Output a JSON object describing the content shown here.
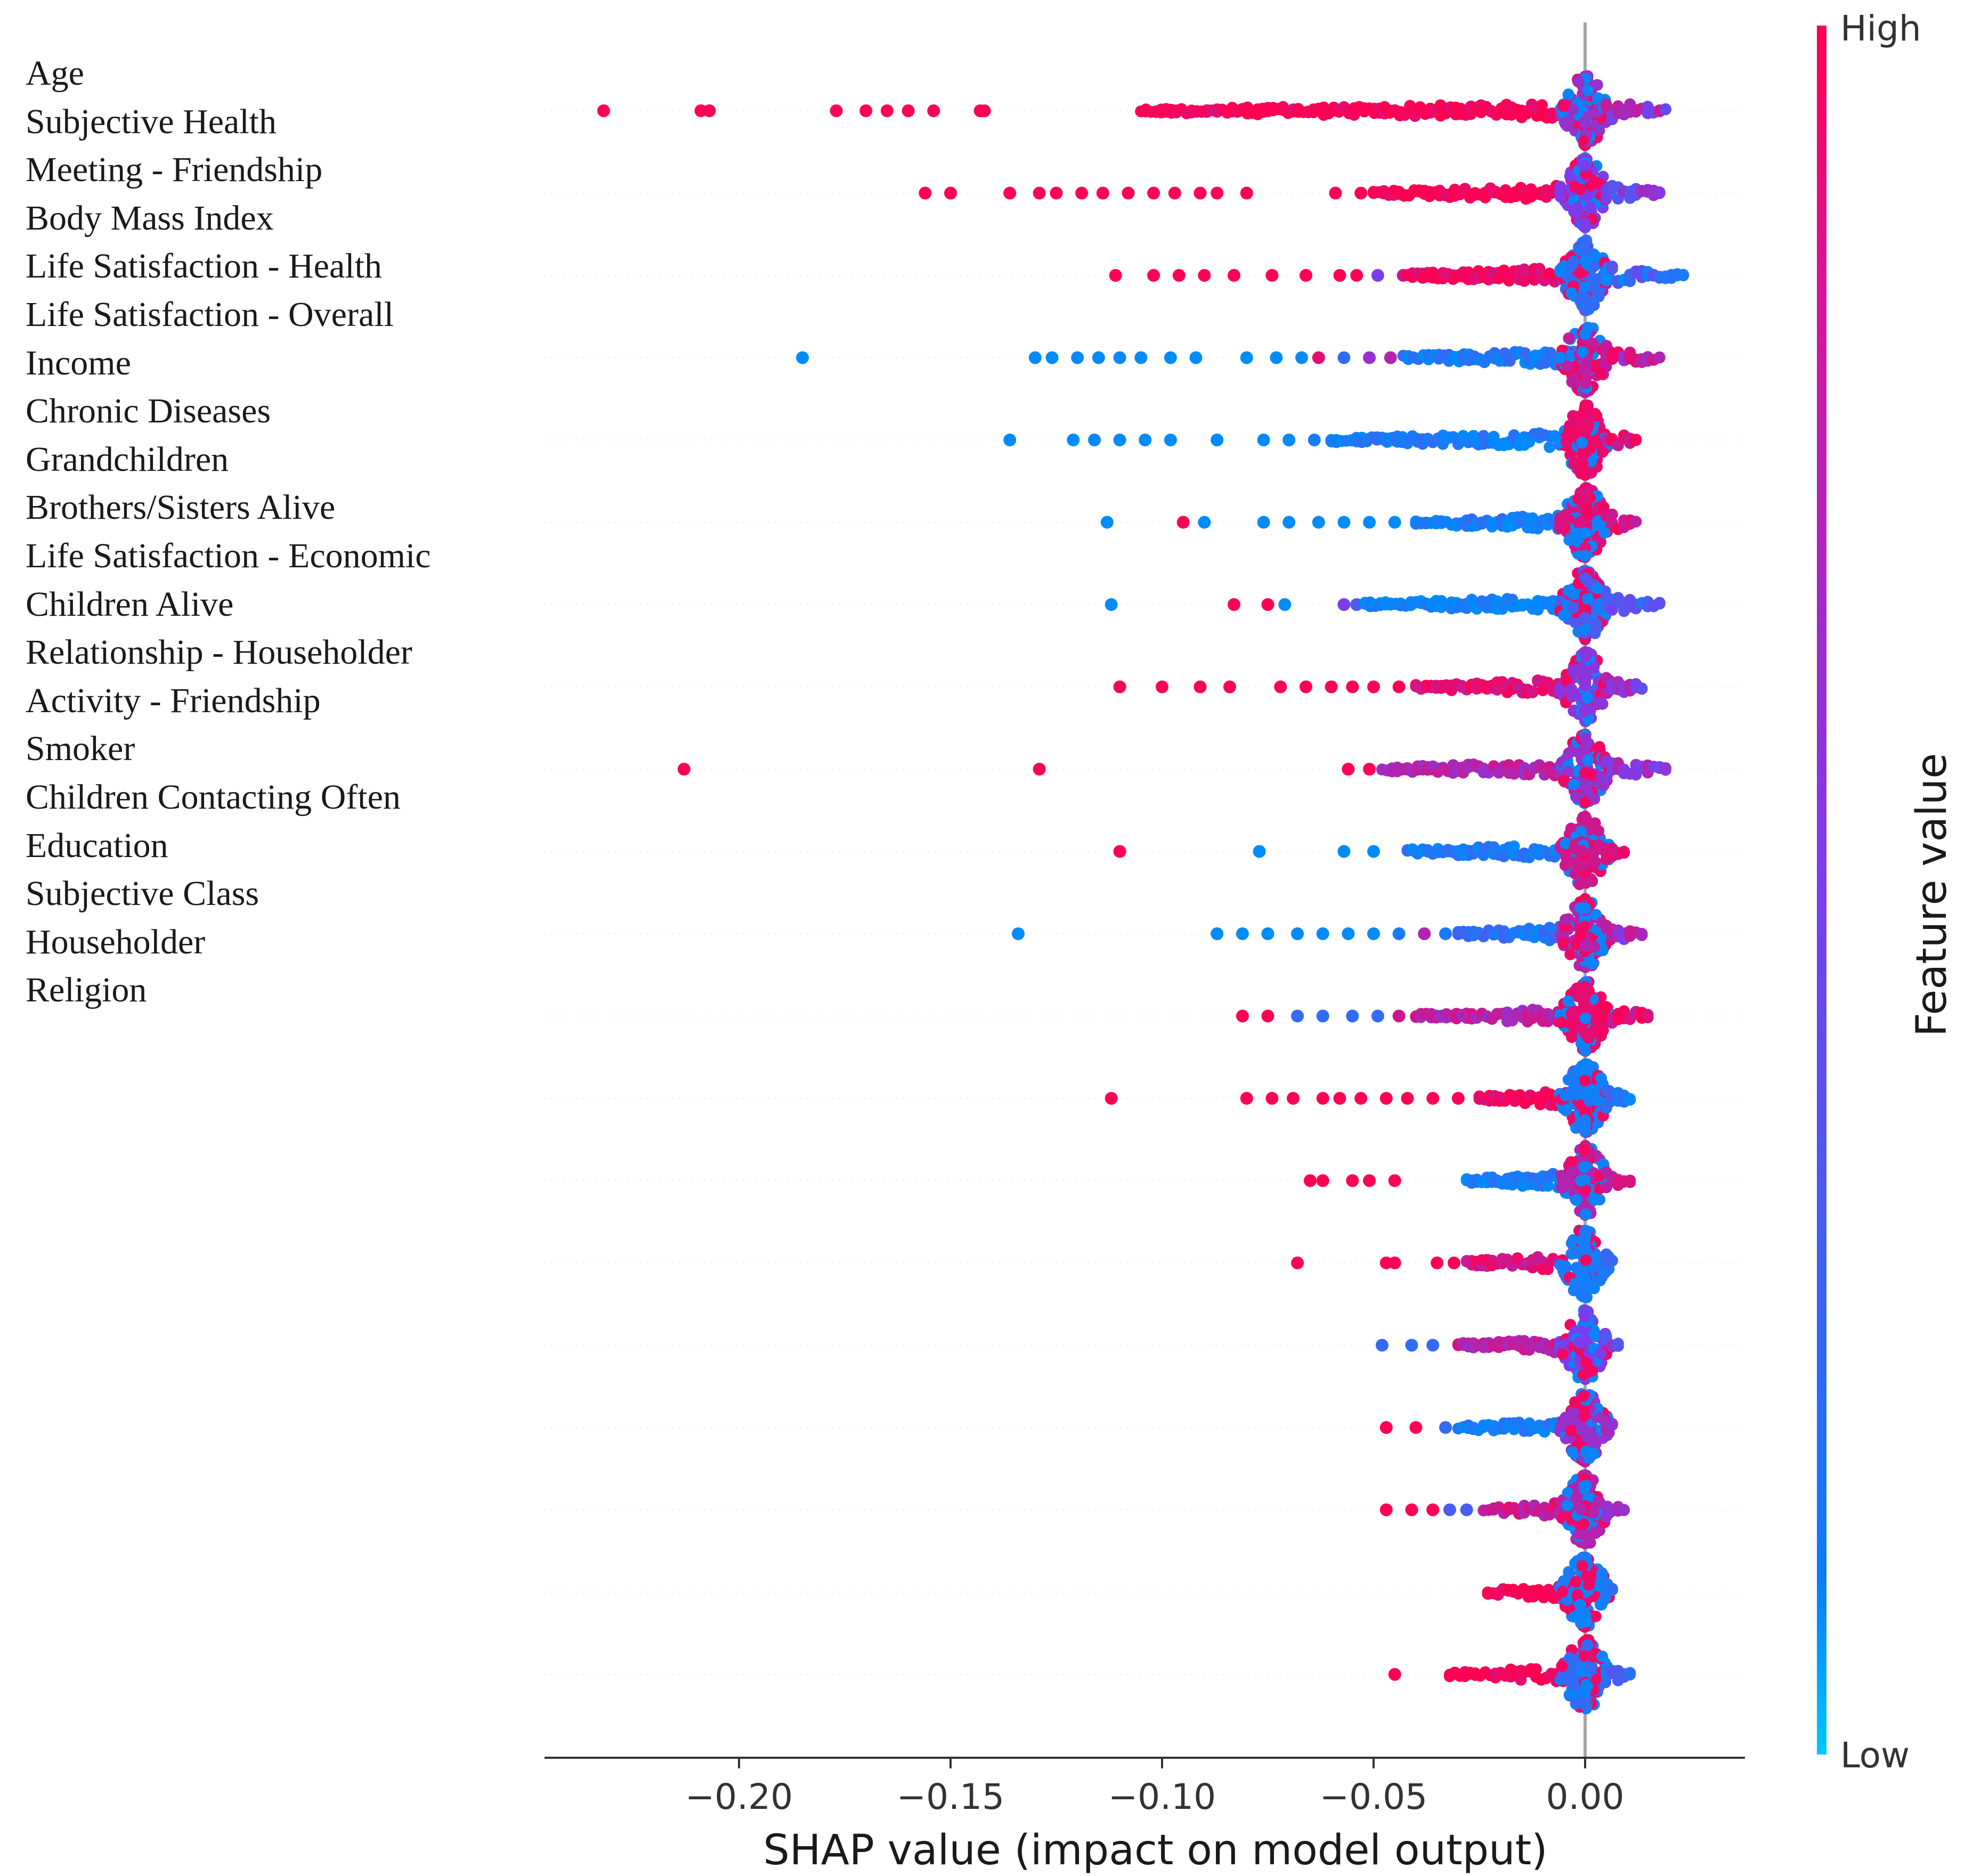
{
  "feature_labels": [
    "Age",
    "Subjective Health",
    "Meeting - Friendship",
    "Body Mass Index",
    "Life Satisfaction - Health",
    "Life Satisfaction - Overall",
    "Income",
    "Chronic Diseases",
    "Grandchildren",
    "Brothers/Sisters Alive",
    "Life Satisfaction - Economic",
    "Children Alive",
    "Relationship - Householder",
    "Activity - Friendship",
    "Smoker",
    "Children Contacting Often",
    "Education",
    "Subjective Class",
    "Householder",
    "Religion"
  ],
  "chart_data": {
    "type": "scatter",
    "subtype": "shap-beeswarm",
    "xlabel": "SHAP value (impact on model output)",
    "xlim": [
      -0.245,
      0.038
    ],
    "xticks": [
      -0.2,
      -0.15,
      -0.1,
      -0.05,
      0.0
    ],
    "xtick_labels": [
      "−0.20",
      "−0.15",
      "−0.10",
      "−0.05",
      "0.00"
    ],
    "zero_line": 0.0,
    "colorbar": {
      "label": "Feature value",
      "high_label": "High",
      "low_label": "Low",
      "high_color": "#ff0052",
      "low_color": "#008bfb"
    },
    "rows": [
      {
        "min": -0.232,
        "max": 0.02,
        "outliers": [
          [
            -0.232,
            1
          ],
          [
            -0.209,
            1
          ],
          [
            -0.207,
            1
          ],
          [
            -0.177,
            1
          ],
          [
            -0.17,
            1
          ],
          [
            -0.165,
            1
          ],
          [
            -0.16,
            1
          ],
          [
            -0.154,
            1
          ],
          [
            -0.143,
            1
          ],
          [
            -0.142,
            1
          ]
        ],
        "dense_start": -0.105,
        "dense_color": 1,
        "near_color": 0.6
      },
      {
        "min": -0.156,
        "max": 0.018,
        "outliers": [
          [
            -0.156,
            1
          ],
          [
            -0.15,
            1
          ],
          [
            -0.136,
            1
          ],
          [
            -0.129,
            1
          ],
          [
            -0.125,
            1
          ],
          [
            -0.119,
            1
          ],
          [
            -0.114,
            1
          ],
          [
            -0.108,
            1
          ],
          [
            -0.102,
            1
          ],
          [
            -0.097,
            1
          ],
          [
            -0.091,
            1
          ],
          [
            -0.087,
            1
          ],
          [
            -0.08,
            1
          ],
          [
            -0.059,
            1
          ],
          [
            -0.053,
            1
          ]
        ],
        "dense_start": -0.05,
        "dense_color": 1,
        "near_color": 0.5
      },
      {
        "min": -0.111,
        "max": 0.024,
        "outliers": [
          [
            -0.111,
            1
          ],
          [
            -0.102,
            1
          ],
          [
            -0.096,
            1
          ],
          [
            -0.09,
            1
          ],
          [
            -0.083,
            1
          ],
          [
            -0.074,
            1
          ],
          [
            -0.066,
            1
          ],
          [
            -0.058,
            1
          ],
          [
            -0.054,
            1
          ],
          [
            -0.049,
            0.5
          ],
          [
            -0.043,
            0.8
          ]
        ],
        "dense_start": -0.042,
        "dense_color": 0.95,
        "near_color": 0.2
      },
      {
        "min": -0.185,
        "max": 0.018,
        "outliers": [
          [
            -0.185,
            0
          ],
          [
            -0.13,
            0
          ],
          [
            -0.126,
            0
          ],
          [
            -0.12,
            0
          ],
          [
            -0.115,
            0
          ],
          [
            -0.11,
            0
          ],
          [
            -0.105,
            0
          ],
          [
            -0.098,
            0
          ],
          [
            -0.092,
            0
          ],
          [
            -0.08,
            0
          ],
          [
            -0.073,
            0
          ],
          [
            -0.067,
            0
          ],
          [
            -0.063,
            0.9
          ],
          [
            -0.057,
            0.2
          ],
          [
            -0.051,
            0.6
          ],
          [
            -0.046,
            0.7
          ]
        ],
        "dense_start": -0.043,
        "dense_color": 0.1,
        "near_color": 0.75
      },
      {
        "min": -0.136,
        "max": 0.012,
        "outliers": [
          [
            -0.136,
            0
          ],
          [
            -0.121,
            0
          ],
          [
            -0.116,
            0
          ],
          [
            -0.11,
            0
          ],
          [
            -0.104,
            0
          ],
          [
            -0.098,
            0
          ],
          [
            -0.087,
            0
          ],
          [
            -0.076,
            0
          ],
          [
            -0.07,
            0
          ],
          [
            -0.064,
            0.1
          ]
        ],
        "dense_start": -0.06,
        "dense_color": 0.1,
        "near_color": 0.9
      },
      {
        "min": -0.113,
        "max": 0.013,
        "outliers": [
          [
            -0.113,
            0
          ],
          [
            -0.095,
            1
          ],
          [
            -0.09,
            0
          ],
          [
            -0.076,
            0
          ],
          [
            -0.07,
            0
          ],
          [
            -0.063,
            0
          ],
          [
            -0.057,
            0
          ],
          [
            -0.051,
            0
          ],
          [
            -0.045,
            0
          ]
        ],
        "dense_start": -0.04,
        "dense_color": 0.1,
        "near_color": 0.85
      },
      {
        "min": -0.112,
        "max": 0.018,
        "outliers": [
          [
            -0.112,
            0
          ],
          [
            -0.083,
            1
          ],
          [
            -0.075,
            1
          ],
          [
            -0.071,
            0
          ],
          [
            -0.057,
            0.5
          ],
          [
            -0.054,
            0.3
          ]
        ],
        "dense_start": -0.052,
        "dense_color": 0.05,
        "near_color": 0.3
      },
      {
        "min": -0.11,
        "max": 0.014,
        "outliers": [
          [
            -0.11,
            1
          ],
          [
            -0.1,
            1
          ],
          [
            -0.091,
            1
          ],
          [
            -0.084,
            1
          ],
          [
            -0.072,
            1
          ],
          [
            -0.066,
            1
          ],
          [
            -0.06,
            1
          ],
          [
            -0.055,
            1
          ],
          [
            -0.05,
            1
          ],
          [
            -0.044,
            1
          ]
        ],
        "dense_start": -0.04,
        "dense_color": 0.9,
        "near_color": 0.55
      },
      {
        "min": -0.213,
        "max": 0.02,
        "outliers": [
          [
            -0.213,
            1
          ],
          [
            -0.129,
            1
          ],
          [
            -0.056,
            1
          ],
          [
            -0.051,
            1
          ]
        ],
        "dense_start": -0.048,
        "dense_color": 0.7,
        "near_color": 0.6
      },
      {
        "min": -0.11,
        "max": 0.01,
        "outliers": [
          [
            -0.11,
            1
          ],
          [
            -0.077,
            0
          ],
          [
            -0.057,
            0
          ],
          [
            -0.05,
            0
          ]
        ],
        "dense_start": -0.042,
        "dense_color": 0.1,
        "near_color": 0.8
      },
      {
        "min": -0.134,
        "max": 0.014,
        "outliers": [
          [
            -0.134,
            0
          ],
          [
            -0.087,
            0
          ],
          [
            -0.081,
            0
          ],
          [
            -0.075,
            0
          ],
          [
            -0.068,
            0
          ],
          [
            -0.062,
            0
          ],
          [
            -0.056,
            0
          ],
          [
            -0.05,
            0
          ],
          [
            -0.044,
            0.1
          ],
          [
            -0.038,
            0.7
          ],
          [
            -0.033,
            0.1
          ]
        ],
        "dense_start": -0.03,
        "dense_color": 0.15,
        "near_color": 0.7
      },
      {
        "min": -0.081,
        "max": 0.016,
        "outliers": [
          [
            -0.081,
            1
          ],
          [
            -0.075,
            1
          ],
          [
            -0.068,
            0.2
          ],
          [
            -0.062,
            0.2
          ],
          [
            -0.055,
            0.2
          ],
          [
            -0.049,
            0.2
          ],
          [
            -0.044,
            0.8
          ]
        ],
        "dense_start": -0.04,
        "dense_color": 0.7,
        "near_color": 0.9
      },
      {
        "min": -0.112,
        "max": 0.011,
        "outliers": [
          [
            -0.112,
            1
          ],
          [
            -0.08,
            1
          ],
          [
            -0.074,
            1
          ],
          [
            -0.069,
            1
          ],
          [
            -0.062,
            1
          ],
          [
            -0.058,
            1
          ],
          [
            -0.053,
            1
          ],
          [
            -0.047,
            1
          ],
          [
            -0.042,
            1
          ],
          [
            -0.036,
            1
          ],
          [
            -0.03,
            1
          ]
        ],
        "dense_start": -0.025,
        "dense_color": 0.95,
        "near_color": 0.1
      },
      {
        "min": -0.065,
        "max": 0.011,
        "outliers": [
          [
            -0.065,
            1
          ],
          [
            -0.062,
            1
          ],
          [
            -0.055,
            1
          ],
          [
            -0.051,
            1
          ],
          [
            -0.045,
            1
          ]
        ],
        "dense_start": -0.028,
        "dense_color": 0.1,
        "near_color": 0.7
      },
      {
        "min": -0.068,
        "max": 0.007,
        "outliers": [
          [
            -0.068,
            1
          ],
          [
            -0.047,
            1
          ],
          [
            -0.045,
            1
          ],
          [
            -0.035,
            1
          ],
          [
            -0.031,
            1
          ]
        ],
        "dense_start": -0.028,
        "dense_color": 0.85,
        "near_color": 0.1
      },
      {
        "min": -0.048,
        "max": 0.008,
        "outliers": [
          [
            -0.048,
            0.2
          ],
          [
            -0.041,
            0.2
          ],
          [
            -0.036,
            0.2
          ]
        ],
        "dense_start": -0.03,
        "dense_color": 0.75,
        "near_color": 0.5
      },
      {
        "min": -0.047,
        "max": 0.007,
        "outliers": [
          [
            -0.047,
            1
          ],
          [
            -0.04,
            1
          ],
          [
            -0.033,
            0.2
          ]
        ],
        "dense_start": -0.03,
        "dense_color": 0.1,
        "near_color": 0.6
      },
      {
        "min": -0.047,
        "max": 0.01,
        "outliers": [
          [
            -0.047,
            1
          ],
          [
            -0.041,
            1
          ],
          [
            -0.036,
            1
          ],
          [
            -0.032,
            0.3
          ],
          [
            -0.028,
            0.3
          ]
        ],
        "dense_start": -0.024,
        "dense_color": 0.8,
        "near_color": 0.7
      },
      {
        "min": -0.023,
        "max": 0.007,
        "outliers": [],
        "dense_start": -0.023,
        "dense_color": 1,
        "near_color": 0.1
      },
      {
        "min": -0.045,
        "max": 0.011,
        "outliers": [
          [
            -0.045,
            1
          ]
        ],
        "dense_start": -0.032,
        "dense_color": 1,
        "near_color": 0.2
      }
    ]
  }
}
